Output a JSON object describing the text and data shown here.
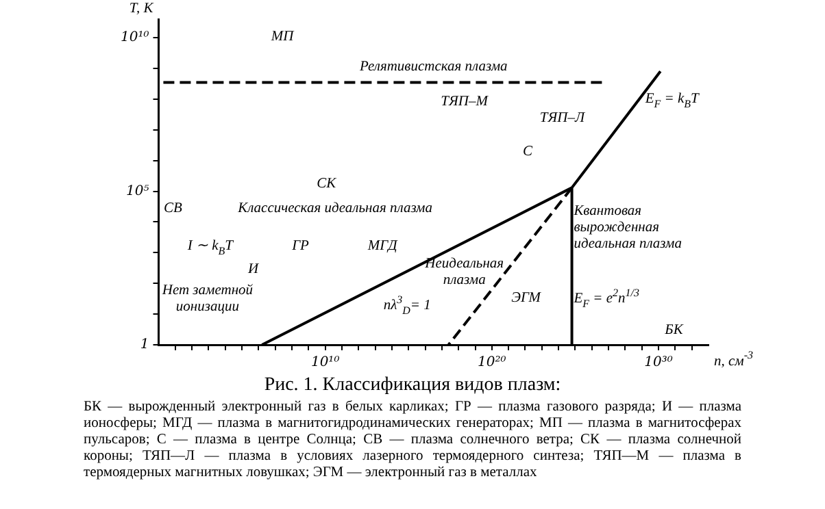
{
  "chart_data": {
    "type": "line",
    "title": "Рис. 1. Классификация видов плазм:",
    "xlabel": "n, см$^{-3}$",
    "ylabel": "T, K",
    "log": "xy",
    "grid": false,
    "legend": false,
    "marker": "none",
    "xlim": [
      1,
      1e+33
    ],
    "ylim": [
      1,
      40000000000.0
    ],
    "xticks": [
      {
        "value": 10,
        "label": null
      },
      {
        "value": 100,
        "label": null
      },
      {
        "value": 1000.0,
        "label": null
      },
      {
        "value": 10000.0,
        "label": null
      },
      {
        "value": 100000.0,
        "label": null
      },
      {
        "value": 1000000.0,
        "label": null
      },
      {
        "value": 10000000.0,
        "label": null
      },
      {
        "value": 100000000.0,
        "label": null
      },
      {
        "value": 1000000000.0,
        "label": null
      },
      {
        "value": 10000000000.0,
        "label": "10¹⁰"
      },
      {
        "value": 100000000000.0,
        "label": null
      },
      {
        "value": 1000000000000.0,
        "label": null
      },
      {
        "value": 10000000000000.0,
        "label": null
      },
      {
        "value": 100000000000000.0,
        "label": null
      },
      {
        "value": 1000000000000000.0,
        "label": null
      },
      {
        "value": 1e+16,
        "label": null
      },
      {
        "value": 1e+17,
        "label": null
      },
      {
        "value": 1e+18,
        "label": null
      },
      {
        "value": 1e+19,
        "label": null
      },
      {
        "value": 1e+20,
        "label": "10²⁰"
      },
      {
        "value": 1e+21,
        "label": null
      },
      {
        "value": 1e+22,
        "label": null
      },
      {
        "value": 1e+23,
        "label": null
      },
      {
        "value": 1e+24,
        "label": null
      },
      {
        "value": 1e+25,
        "label": null
      },
      {
        "value": 1e+26,
        "label": null
      },
      {
        "value": 1e+27,
        "label": null
      },
      {
        "value": 1e+28,
        "label": null
      },
      {
        "value": 1e+29,
        "label": null
      },
      {
        "value": 1e+30,
        "label": "10³⁰"
      },
      {
        "value": 1e+31,
        "label": null
      },
      {
        "value": 1e+32,
        "label": null
      }
    ],
    "yticks": [
      1,
      {
        "value": 10,
        "label": null
      },
      {
        "value": 100,
        "label": null
      },
      {
        "value": 1000.0,
        "label": null
      },
      {
        "value": 10000.0,
        "label": null
      },
      {
        "value": 100000.0,
        "label": "10⁵"
      },
      {
        "value": 1000000.0,
        "label": null
      },
      {
        "value": 10000000.0,
        "label": null
      },
      {
        "value": 100000000.0,
        "label": null
      },
      {
        "value": 1000000000.0,
        "label": null
      },
      {
        "value": 10000000000.0,
        "label": "10¹⁰"
      }
    ],
    "series": [
      {
        "color": "#000000",
        "x": [
          1600000.0,
          6.3e+24,
          1.3e+30,
          null,
          6.3e+24,
          6.3e+24
        ],
        "values": [
          1,
          130000.0,
          800000000.0,
          null,
          130000.0,
          1
        ]
      },
      {
        "color": "#000000",
        "x": [
          6.3e+24,
          2.5e+17
        ],
        "values": [
          130000.0,
          1
        ],
        "line_style": "dashed"
      },
      {
        "color": "#000000",
        "x": [
          4e+26,
          1
        ],
        "values": [
          350000000.0,
          350000000.0
        ],
        "line_style": "dashed"
      }
    ],
    "annotations": [
      "МП",
      "Релятивистская плазма",
      "ТЯП–М",
      "ТЯП–Л",
      "С",
      "СК",
      "СВ",
      "Классическая идеальная плазма",
      "I ∼ k$_{B}$T",
      "ГР",
      "МГД",
      "И",
      "Нет заметной\nионизации",
      "Неидеальная\nплазма",
      "nλ$^{3}$$_{D}$= 1",
      "ЭГМ",
      "Квантовая\nвырожденная\nидеальная плазма",
      "E$_{F}$ = e$^{2}$n$^{1/3}$",
      "E$_{F}$ = k$_{B}$T",
      "БК",
      "БК — вырожденный электронный газ в белых карликах; ГР — плазма газового разряда; И — плазма ионосферы; МГД — плазма в магнитогидродинамических генераторах; МП — плазма в магнитосферах пульсаров; С — плазма в центре Солнца; СВ — плазма солнечного ветра; СК — плазма солнечной короны; ТЯП—Л — плазма в условиях лазерного термоядерного синтеза; ТЯП—М — плазма в термоядерных магнитных ловушках; ЭГМ — электронный газ в металлах"
    ]
  }
}
